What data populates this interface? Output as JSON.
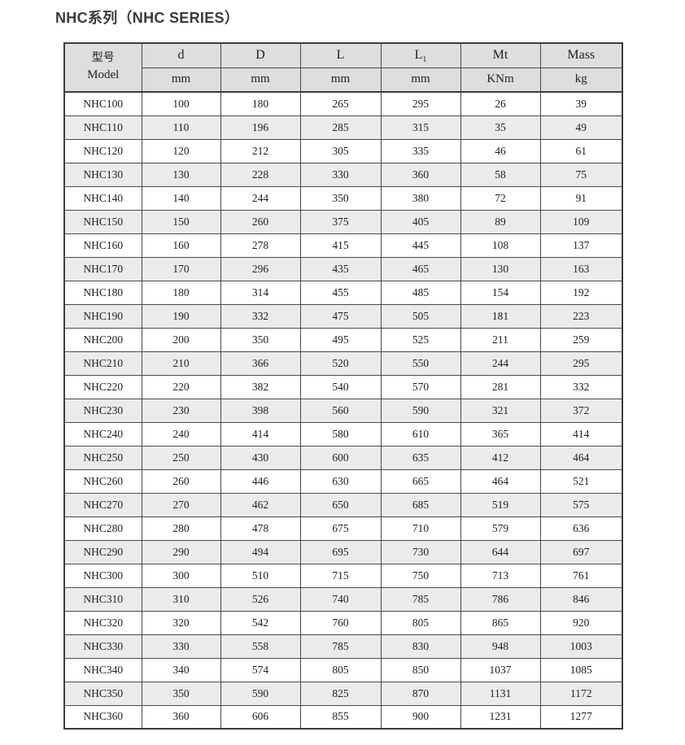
{
  "page": {
    "title": "NHC系列（NHC SERIES）"
  },
  "colors": {
    "header_bg": "#dedede",
    "row_alt_bg": "#ebebeb",
    "row_bg": "#ffffff",
    "border": "#4a4a4a",
    "outer_border": "#3c3c3c",
    "text": "#1f1f1f",
    "title_text": "#3a3a3a"
  },
  "table": {
    "header": {
      "model_label_cn": "型号",
      "model_label_en": "Model",
      "columns": [
        {
          "name": "d",
          "unit": "mm"
        },
        {
          "name": "D",
          "unit": "mm"
        },
        {
          "name": "L",
          "unit": "mm"
        },
        {
          "name": "L",
          "sub": "1",
          "unit": "mm"
        },
        {
          "name": "Mt",
          "unit": "KNm"
        },
        {
          "name": "Mass",
          "unit": "kg"
        }
      ]
    },
    "rows": [
      {
        "model": "NHC100",
        "values": [
          100,
          180,
          265,
          295,
          26,
          39
        ]
      },
      {
        "model": "NHC110",
        "values": [
          110,
          196,
          285,
          315,
          35,
          49
        ]
      },
      {
        "model": "NHC120",
        "values": [
          120,
          212,
          305,
          335,
          46,
          61
        ]
      },
      {
        "model": "NHC130",
        "values": [
          130,
          228,
          330,
          360,
          58,
          75
        ]
      },
      {
        "model": "NHC140",
        "values": [
          140,
          244,
          350,
          380,
          72,
          91
        ]
      },
      {
        "model": "NHC150",
        "values": [
          150,
          260,
          375,
          405,
          89,
          109
        ]
      },
      {
        "model": "NHC160",
        "values": [
          160,
          278,
          415,
          445,
          108,
          137
        ]
      },
      {
        "model": "NHC170",
        "values": [
          170,
          296,
          435,
          465,
          130,
          163
        ]
      },
      {
        "model": "NHC180",
        "values": [
          180,
          314,
          455,
          485,
          154,
          192
        ]
      },
      {
        "model": "NHC190",
        "values": [
          190,
          332,
          475,
          505,
          181,
          223
        ]
      },
      {
        "model": "NHC200",
        "values": [
          200,
          350,
          495,
          525,
          211,
          259
        ]
      },
      {
        "model": "NHC210",
        "values": [
          210,
          366,
          520,
          550,
          244,
          295
        ]
      },
      {
        "model": "NHC220",
        "values": [
          220,
          382,
          540,
          570,
          281,
          332
        ]
      },
      {
        "model": "NHC230",
        "values": [
          230,
          398,
          560,
          590,
          321,
          372
        ]
      },
      {
        "model": "NHC240",
        "values": [
          240,
          414,
          580,
          610,
          365,
          414
        ]
      },
      {
        "model": "NHC250",
        "values": [
          250,
          430,
          600,
          635,
          412,
          464
        ]
      },
      {
        "model": "NHC260",
        "values": [
          260,
          446,
          630,
          665,
          464,
          521
        ]
      },
      {
        "model": "NHC270",
        "values": [
          270,
          462,
          650,
          685,
          519,
          575
        ]
      },
      {
        "model": "NHC280",
        "values": [
          280,
          478,
          675,
          710,
          579,
          636
        ]
      },
      {
        "model": "NHC290",
        "values": [
          290,
          494,
          695,
          730,
          644,
          697
        ]
      },
      {
        "model": "NHC300",
        "values": [
          300,
          510,
          715,
          750,
          713,
          761
        ]
      },
      {
        "model": "NHC310",
        "values": [
          310,
          526,
          740,
          785,
          786,
          846
        ]
      },
      {
        "model": "NHC320",
        "values": [
          320,
          542,
          760,
          805,
          865,
          920
        ]
      },
      {
        "model": "NHC330",
        "values": [
          330,
          558,
          785,
          830,
          948,
          1003
        ]
      },
      {
        "model": "NHC340",
        "values": [
          340,
          574,
          805,
          850,
          1037,
          1085
        ]
      },
      {
        "model": "NHC350",
        "values": [
          350,
          590,
          825,
          870,
          1131,
          1172
        ]
      },
      {
        "model": "NHC360",
        "values": [
          360,
          606,
          855,
          900,
          1231,
          1277
        ]
      }
    ]
  }
}
